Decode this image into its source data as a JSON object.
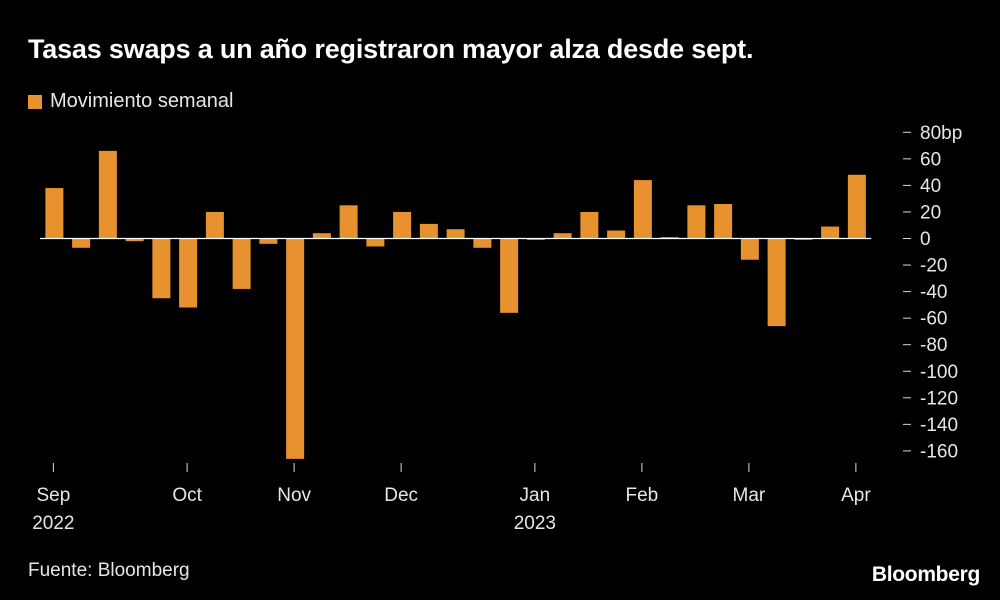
{
  "title": "Tasas swaps a un año registraron mayor alza desde sept.",
  "legend": [
    {
      "label": "Movimiento semanal",
      "color": "#e8912f"
    }
  ],
  "source": "Fuente: Bloomberg",
  "brand": "Bloomberg",
  "chart_data": {
    "type": "bar",
    "series": [
      {
        "name": "Movimiento semanal",
        "color": "#e8912f",
        "values": [
          38,
          -7,
          66,
          -2,
          -45,
          -52,
          20,
          -38,
          -4,
          -166,
          4,
          25,
          -6,
          20,
          11,
          7,
          -7,
          -56,
          -1,
          4,
          20,
          6,
          44,
          1,
          25,
          26,
          -16,
          -66,
          -1,
          9,
          48
        ]
      }
    ],
    "ylim": [
      -170,
      80
    ],
    "yticks": [
      80,
      60,
      40,
      20,
      0,
      -20,
      -40,
      -60,
      -80,
      -100,
      -120,
      -140,
      -160
    ],
    "ytick_labels": [
      "80bp",
      "60",
      "40",
      "20",
      "0",
      "-20",
      "-40",
      "-60",
      "-80",
      "-100",
      "-120",
      "-140",
      "-160"
    ],
    "xticks": [
      {
        "label": "Sep",
        "sub": "2022",
        "pos": 0.5
      },
      {
        "label": "Oct",
        "sub": "",
        "pos": 5.5
      },
      {
        "label": "Nov",
        "sub": "",
        "pos": 9.5
      },
      {
        "label": "Dec",
        "sub": "",
        "pos": 13.5
      },
      {
        "label": "Jan",
        "sub": "2023",
        "pos": 18.5
      },
      {
        "label": "Feb",
        "sub": "",
        "pos": 22.5
      },
      {
        "label": "Mar",
        "sub": "",
        "pos": 26.5
      },
      {
        "label": "Apr",
        "sub": "",
        "pos": 30.5
      }
    ],
    "grid": false,
    "zero_line": true,
    "yaxis_side": "right",
    "legend_position": "top-left"
  }
}
